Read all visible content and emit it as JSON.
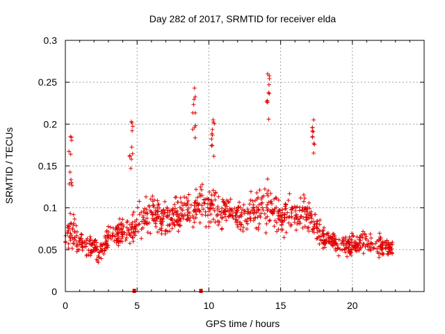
{
  "chart_data": {
    "type": "scatter",
    "title": "Day 282 of 2017, SRMTID for receiver elda",
    "xlabel": "GPS time / hours",
    "ylabel": "SRMTID / TECUs",
    "xlim": [
      0,
      25
    ],
    "ylim": [
      0,
      0.3
    ],
    "xticks": [
      0,
      5,
      10,
      15,
      20
    ],
    "xtick_labels": [
      "0",
      "5",
      "10",
      "15",
      "20"
    ],
    "yticks": [
      0,
      0.05,
      0.1,
      0.15,
      0.2,
      0.25,
      0.3
    ],
    "ytick_labels": [
      "0",
      "0.05",
      "0.1",
      "0.15",
      "0.2",
      "0.25",
      "0.3"
    ],
    "grid": true,
    "marker": "plus",
    "series_color": "#e00000",
    "profile": {
      "x": [
        0,
        0.3,
        1,
        2,
        2.5,
        3,
        4,
        5,
        6,
        7,
        8,
        9,
        10,
        11,
        12,
        13,
        14,
        15,
        16,
        17,
        18,
        19,
        20,
        21,
        22,
        22.8
      ],
      "y": [
        0.065,
        0.075,
        0.06,
        0.05,
        0.045,
        0.065,
        0.07,
        0.08,
        0.095,
        0.085,
        0.095,
        0.1,
        0.105,
        0.095,
        0.09,
        0.095,
        0.105,
        0.09,
        0.095,
        0.09,
        0.065,
        0.055,
        0.055,
        0.06,
        0.055,
        0.05
      ],
      "spread": [
        0.02,
        0.04,
        0.02,
        0.02,
        0.015,
        0.02,
        0.025,
        0.03,
        0.03,
        0.025,
        0.03,
        0.03,
        0.035,
        0.03,
        0.03,
        0.03,
        0.04,
        0.03,
        0.03,
        0.03,
        0.02,
        0.02,
        0.02,
        0.02,
        0.02,
        0.015
      ]
    },
    "peaks": [
      {
        "x": 0.35,
        "y": 0.185
      },
      {
        "x": 4.6,
        "y": 0.203
      },
      {
        "x": 9.0,
        "y": 0.243
      },
      {
        "x": 10.3,
        "y": 0.205
      },
      {
        "x": 14.1,
        "y": 0.26
      },
      {
        "x": 17.3,
        "y": 0.205
      }
    ],
    "x_range_points": [
      0,
      22.8
    ],
    "point_count": 1100,
    "outage_marks": [
      4.8,
      9.45
    ]
  }
}
